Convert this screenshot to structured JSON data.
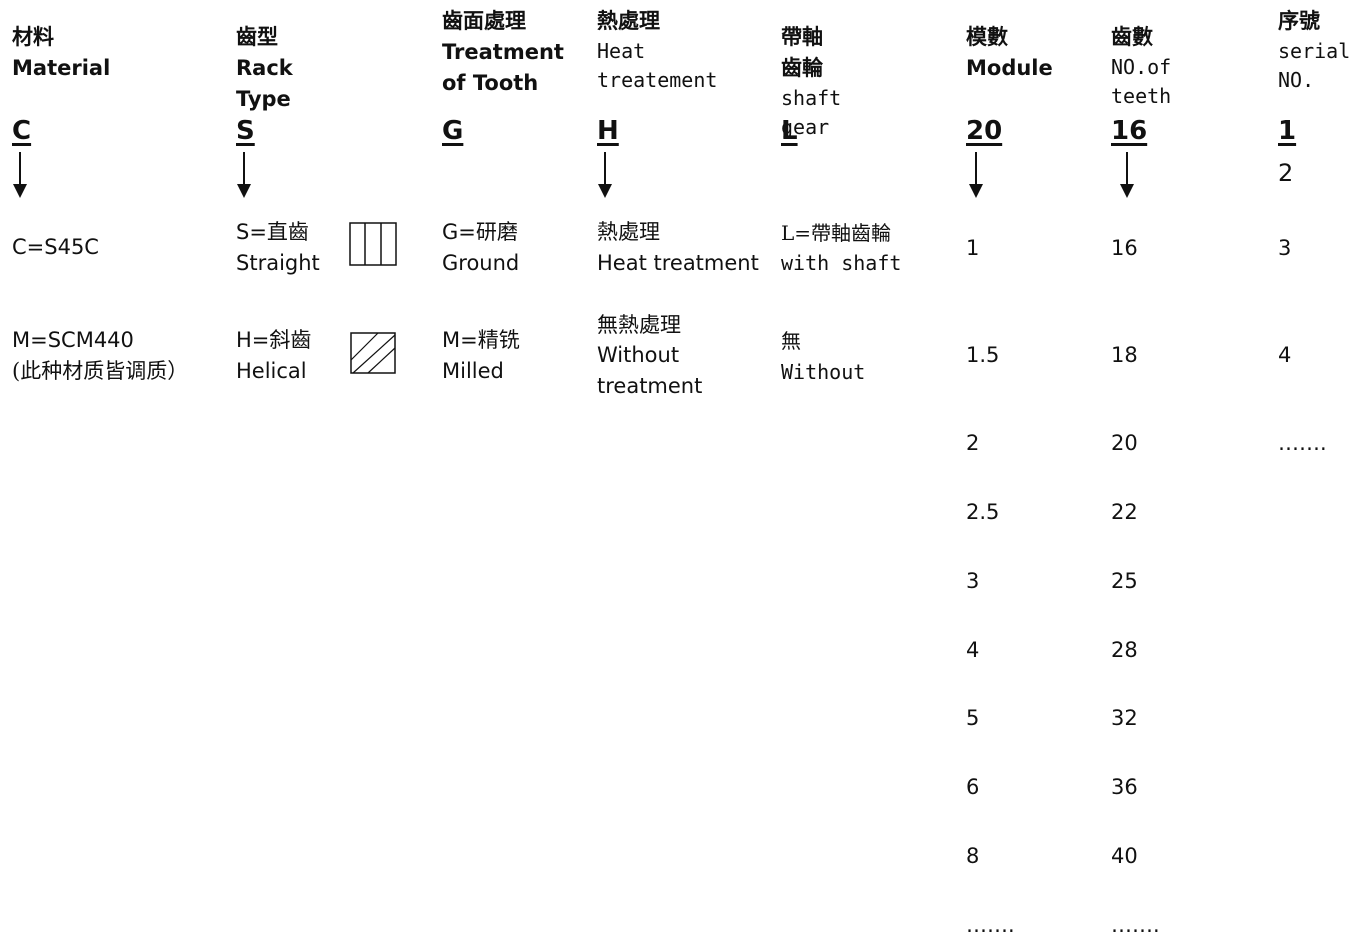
{
  "columns": {
    "material": {
      "zh": "材料",
      "en": "Material",
      "code": "C",
      "options": [
        {
          "line1": "C=S45C"
        },
        {
          "line1": "M=SCM440",
          "line2": "(此种材质皆调质）"
        }
      ]
    },
    "rack_type": {
      "zh": "齒型",
      "en": "Rack Type",
      "code": "S",
      "options": [
        {
          "line1": "S=直齒",
          "line2": "Straight",
          "icon": "straight-teeth-icon"
        },
        {
          "line1": "H=斜齒",
          "line2": "Helical",
          "icon": "helical-teeth-icon"
        }
      ]
    },
    "treatment_of_tooth": {
      "zh": "齒面處理",
      "en1": "Treatment",
      "en2": "of Tooth",
      "code": "G",
      "options": [
        {
          "line1": "G=研磨",
          "line2": "Ground"
        },
        {
          "line1": "M=精铣",
          "line2": "Milled"
        }
      ]
    },
    "heat_treatment": {
      "zh": "熱處理",
      "en1": "Heat",
      "en2": "treatement",
      "code": "H",
      "options": [
        {
          "line1": "熱處理",
          "line2": "Heat treatment"
        },
        {
          "line1": "無熱處理",
          "line2": "Without",
          "line3": "treatment"
        }
      ]
    },
    "shaft_gear": {
      "zh": "帶軸齒輪",
      "en": "shaft gear",
      "code": "L",
      "options": [
        {
          "line1": "L=帶軸齒輪",
          "line2": "with shaft"
        },
        {
          "line1": "無",
          "line2": "Without"
        }
      ]
    },
    "module": {
      "zh": "模數",
      "en": "Module",
      "code": "20",
      "values": [
        "1",
        "1.5",
        "2",
        "2.5",
        "3",
        "4",
        "5",
        "6",
        "8",
        "……."
      ]
    },
    "teeth": {
      "zh": "齒數",
      "en": "NO.of teeth",
      "code": "16",
      "values": [
        "16",
        "18",
        "20",
        "22",
        "25",
        "28",
        "32",
        "36",
        "40",
        "……."
      ]
    },
    "serial": {
      "zh": "序號",
      "en1": "serial",
      "en2": "NO.",
      "code": "1",
      "values": [
        "2",
        "3",
        "4",
        "……."
      ]
    }
  }
}
